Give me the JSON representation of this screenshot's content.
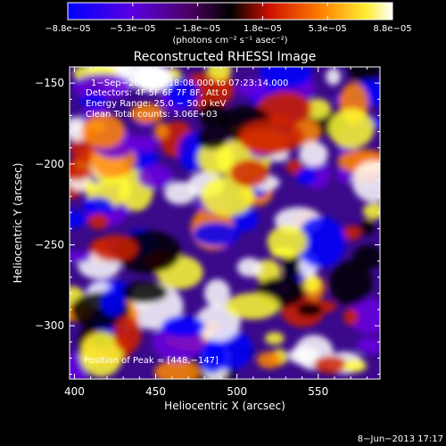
{
  "chart_data": {
    "type": "heatmap",
    "title": "Reconstructed RHESSI Image",
    "xlabel": "Heliocentric X (arcsec)",
    "ylabel": "Heliocentric Y (arcsec)",
    "xlim": [
      397,
      588
    ],
    "ylim": [
      -333,
      -140
    ],
    "x_ticks": [
      {
        "value": 400,
        "label": "400"
      },
      {
        "value": 450,
        "label": "450"
      },
      {
        "value": 500,
        "label": "500"
      },
      {
        "value": 550,
        "label": "550"
      }
    ],
    "y_ticks": [
      {
        "value": -150,
        "label": "−150"
      },
      {
        "value": -200,
        "label": "−200"
      },
      {
        "value": -250,
        "label": "−250"
      },
      {
        "value": -300,
        "label": "−300"
      }
    ],
    "colorbar": {
      "min": -8.8e-05,
      "max": 8.8e-05,
      "tick_labels": [
        "−8.8e−05",
        "−5.3e−05",
        "−1.8e−05",
        "1.8e−05",
        "5.3e−05",
        "8.8e−05"
      ],
      "units_label": "(photons cm⁻² s⁻¹ asec⁻²)"
    },
    "annotations": {
      "time_range": "1−Sep−2012 07:18:08.000 to 07:23:14.000",
      "detectors": "Detectors: 4F 5F 6F 7F 8F, Att 0",
      "energy": "Energy Range: 25.0 − 50.0 keV",
      "clean": "Clean     Total counts: 3.06E+03",
      "peak": "Position of Peak = [448,−147]"
    },
    "peak": {
      "x": 448,
      "y": -147
    },
    "colormap": [
      "#0000ff",
      "#6a00e0",
      "#000000",
      "#cc2200",
      "#ff8800",
      "#ffff33",
      "#ffffff"
    ],
    "footer_date": "8−Jun−2013 17:17"
  }
}
